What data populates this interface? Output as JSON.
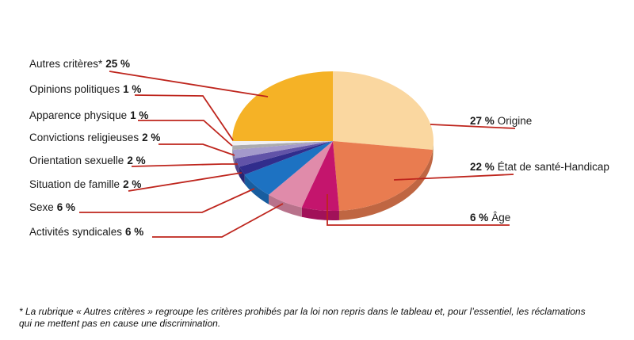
{
  "chart_data": {
    "type": "pie",
    "title": "",
    "unit": "%",
    "style": "3d-ellipse",
    "start_angle_deg": 90,
    "direction": "clockwise",
    "slices": [
      {
        "label": "Origine",
        "value": 27,
        "value_label": "27 %",
        "color": "#FAD7A0"
      },
      {
        "label": "État de santé-Handicap",
        "value": 22,
        "value_label": "22 %",
        "color": "#E97C50"
      },
      {
        "label": "Âge",
        "value": 6,
        "value_label": "6 %",
        "color": "#C4156D"
      },
      {
        "label": "Activités syndicales",
        "value": 6,
        "value_label": "6 %",
        "color": "#E08BAA"
      },
      {
        "label": "Sexe",
        "value": 6,
        "value_label": "6 %",
        "color": "#1D72C2"
      },
      {
        "label": "Situation de famille",
        "value": 2,
        "value_label": "2 %",
        "color": "#312D8C"
      },
      {
        "label": "Orientation sexuelle",
        "value": 2,
        "value_label": "2 %",
        "color": "#6153A8"
      },
      {
        "label": "Convictions religieuses",
        "value": 2,
        "value_label": "2 %",
        "color": "#A49ACB"
      },
      {
        "label": "Apparence physique",
        "value": 1,
        "value_label": "1 %",
        "color": "#ACABAF"
      },
      {
        "label": "Opinions politiques",
        "value": 1,
        "value_label": "1 %",
        "color": "#F1F0F2"
      },
      {
        "label": "Autres critères*",
        "value": 25,
        "value_label": "25 %",
        "color": "#F5B226"
      }
    ],
    "callout_color": "#BE251D"
  },
  "footnote": "* La rubrique « Autres critères » regroupe les critères prohibés par la loi non repris dans le tableau et, pour l’essentiel, les réclamations qui ne mettent pas en cause une discrimination."
}
